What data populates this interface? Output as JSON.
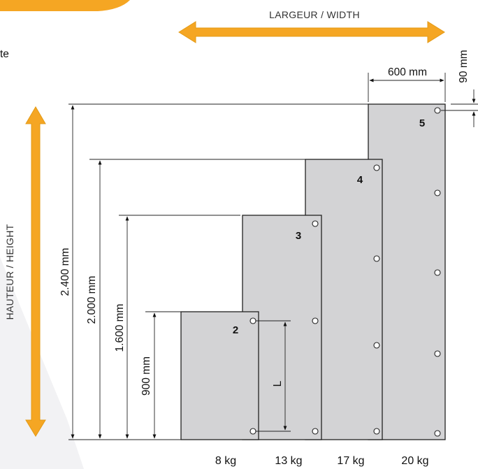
{
  "top_left_text": "te",
  "width_label": "LARGEUR / WIDTH",
  "height_label": "HAUTEUR / HEIGHT",
  "panels": [
    {
      "number": "2",
      "height": "900 mm",
      "weight": "8 kg"
    },
    {
      "number": "3",
      "height": "1.600 mm",
      "weight": "13 kg"
    },
    {
      "number": "4",
      "height": "2.000 mm",
      "weight": "17 kg"
    },
    {
      "number": "5",
      "height": "2.400 mm",
      "weight": "20 kg"
    }
  ],
  "panel_width": "600 mm",
  "hole_offset": "90 mm",
  "spacing_label": "L",
  "colors": {
    "accent": "#F5A623",
    "panel": "#D3D3D5",
    "background_shape": "#F2F2F4"
  }
}
